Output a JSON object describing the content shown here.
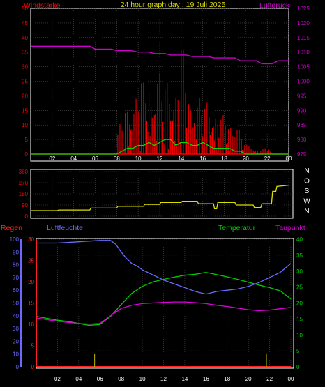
{
  "title": "24 hour graph day : 19 Juli 2025",
  "colors": {
    "wind": "#ff0000",
    "pressure": "#cc00cc",
    "gust_line": "#00dd00",
    "direction": "#dddd00",
    "rain": "#ff2020",
    "humidity": "#6a6aff",
    "temperature": "#00cc00",
    "dewpoint": "#dd00dd",
    "rain_markers": "#bbbb00",
    "grid": "#505050",
    "frame": "#ffffff"
  },
  "chart_data": [
    {
      "type": "line",
      "left_label": "Windstärke",
      "right_label": "Luftdruck",
      "x_ticks": [
        "02",
        "04",
        "06",
        "08",
        "10",
        "12",
        "14",
        "16",
        "18",
        "20",
        "22",
        "00"
      ],
      "left_ticks": [
        "0",
        "5",
        "10",
        "15",
        "20",
        "25",
        "30",
        "35",
        "40",
        "45",
        "50"
      ],
      "right_ticks": [
        "975",
        "980",
        "985",
        "990",
        "995",
        "1000",
        "1005",
        "1010",
        "1015",
        "1020",
        "1025"
      ],
      "xlim": [
        0,
        24
      ],
      "left_ylim": [
        0,
        50
      ],
      "right_ylim": [
        975,
        1025
      ],
      "series": [
        {
          "id": "pressure",
          "axis": "right",
          "x": [
            0,
            5.5,
            6,
            7.5,
            8,
            9.3,
            10,
            11,
            11.5,
            12.5,
            13,
            14.5,
            15,
            16.5,
            17,
            19,
            19.5,
            21,
            21.5,
            22.5,
            23,
            24
          ],
          "values": [
            1012,
            1012,
            1011,
            1011,
            1010.5,
            1010.5,
            1010,
            1010,
            1009.5,
            1009.5,
            1009,
            1009,
            1008.5,
            1008.5,
            1008,
            1008,
            1007,
            1007,
            1006,
            1006,
            1007,
            1007
          ]
        },
        {
          "id": "wind_max",
          "axis": "left",
          "x": [
            0,
            7.9,
            8.0,
            8.5,
            9,
            9.5,
            10,
            10.5,
            11,
            11.5,
            12,
            12.5,
            13,
            13.5,
            14,
            14.5,
            15,
            15.5,
            16,
            16.5,
            17,
            17.5,
            18,
            18.5,
            19,
            19.5,
            20,
            20.5,
            21,
            21.5,
            22,
            22.5,
            24
          ],
          "values": [
            0,
            0,
            4,
            9,
            12,
            15,
            18,
            16,
            22,
            20,
            19,
            17,
            21,
            18,
            26,
            18,
            17,
            14,
            12,
            13,
            14,
            10,
            8,
            9,
            10,
            5,
            2,
            3,
            1,
            1,
            2,
            0,
            0
          ]
        },
        {
          "id": "wind_mean",
          "axis": "left",
          "x": [
            0,
            8,
            8.5,
            9,
            9.5,
            10,
            10.5,
            11,
            11.5,
            12,
            12.5,
            13,
            13.5,
            14,
            14.5,
            15,
            15.5,
            16,
            16.5,
            17,
            17.5,
            18,
            18.5,
            19,
            19.5,
            20,
            24
          ],
          "values": [
            0,
            0,
            1,
            2,
            2,
            3,
            3,
            4,
            3,
            4,
            5,
            5,
            3,
            4,
            4,
            3,
            3,
            4,
            3,
            2,
            2,
            2,
            2,
            1,
            1,
            0,
            0
          ]
        }
      ]
    },
    {
      "type": "line",
      "left_ticks": [
        "0",
        "90",
        "180",
        "270",
        "360"
      ],
      "right_ticks": [
        "N",
        "O",
        "S",
        "W",
        "N"
      ],
      "xlim": [
        0,
        24
      ],
      "ylim": [
        0,
        360
      ],
      "series": [
        {
          "id": "wind_direction",
          "x": [
            0,
            2.5,
            2.6,
            5.5,
            5.6,
            8,
            8.1,
            10.5,
            10.6,
            12,
            12.1,
            14,
            14.1,
            15.5,
            15.6,
            17,
            17.1,
            17.3,
            17.4,
            19,
            19.1,
            20.7,
            20.8,
            21.4,
            21.5,
            22.4,
            22.5,
            22.8,
            22.9,
            24
          ],
          "values": [
            45,
            45,
            50,
            50,
            65,
            65,
            80,
            80,
            95,
            95,
            110,
            110,
            120,
            120,
            100,
            100,
            60,
            60,
            110,
            110,
            90,
            90,
            70,
            70,
            100,
            100,
            200,
            200,
            240,
            250
          ]
        }
      ]
    },
    {
      "type": "line",
      "labels": {
        "rain": "Regen",
        "humidity": "Luftfeuchte",
        "temperature": "Temperatur",
        "dewpoint": "Taupunkt"
      },
      "x_ticks": [
        "02",
        "04",
        "06",
        "08",
        "10",
        "12",
        "14",
        "16",
        "18",
        "20",
        "22",
        "00"
      ],
      "humidity_ticks": [
        "0",
        "10",
        "20",
        "30",
        "40",
        "50",
        "60",
        "70",
        "80",
        "90",
        "100"
      ],
      "rain_ticks": [
        "0",
        "5",
        "10",
        "15",
        "20",
        "25",
        "30"
      ],
      "temperature_ticks": [
        "0",
        "5",
        "10",
        "15",
        "20",
        "25",
        "30",
        "35",
        "40"
      ],
      "xlim": [
        0,
        24
      ],
      "humidity_ylim": [
        0,
        100
      ],
      "rain_ylim": [
        0,
        30
      ],
      "temperature_ylim": [
        0,
        40
      ],
      "series": [
        {
          "id": "humidity",
          "x": [
            0,
            2,
            4,
            6,
            7,
            7.5,
            8,
            8.5,
            9,
            9.5,
            10,
            11,
            12,
            13,
            14,
            15,
            16,
            17,
            18,
            19,
            20,
            21,
            22,
            23,
            24
          ],
          "values": [
            97,
            97,
            98,
            99,
            99,
            96,
            90,
            85,
            81,
            79,
            76,
            72,
            68,
            65,
            62,
            59,
            57,
            59,
            60,
            61,
            63,
            66,
            70,
            74,
            81
          ]
        },
        {
          "id": "temperature",
          "x": [
            0,
            1,
            2,
            3,
            4,
            5,
            6,
            7,
            8,
            9,
            10,
            11,
            12,
            13,
            14,
            15,
            16,
            17,
            18,
            19,
            20,
            21,
            22,
            23,
            24
          ],
          "values": [
            15.8,
            15.2,
            14.6,
            14.2,
            13.6,
            13.0,
            13.3,
            15.8,
            19.5,
            23.0,
            25.2,
            26.6,
            27.4,
            28.1,
            28.7,
            29.0,
            29.6,
            28.9,
            28.2,
            27.4,
            26.5,
            25.6,
            24.8,
            23.8,
            21.3
          ]
        },
        {
          "id": "dewpoint",
          "x": [
            0,
            1,
            2,
            3,
            4,
            5,
            6,
            7,
            8,
            9,
            10,
            11,
            12,
            13,
            14,
            15,
            16,
            17,
            18,
            19,
            20,
            21,
            22,
            23,
            24
          ],
          "values": [
            15.3,
            14.8,
            14.3,
            13.9,
            13.6,
            13.4,
            13.6,
            16.0,
            18.3,
            19.3,
            19.8,
            20.0,
            20.2,
            20.3,
            20.3,
            20.1,
            19.8,
            19.3,
            18.9,
            18.4,
            17.9,
            17.6,
            17.8,
            18.2,
            18.6
          ]
        },
        {
          "id": "rain",
          "x": [
            0,
            24
          ],
          "values": [
            0,
            0
          ]
        }
      ],
      "rain_markers_x": [
        5.5,
        21.7
      ]
    }
  ]
}
